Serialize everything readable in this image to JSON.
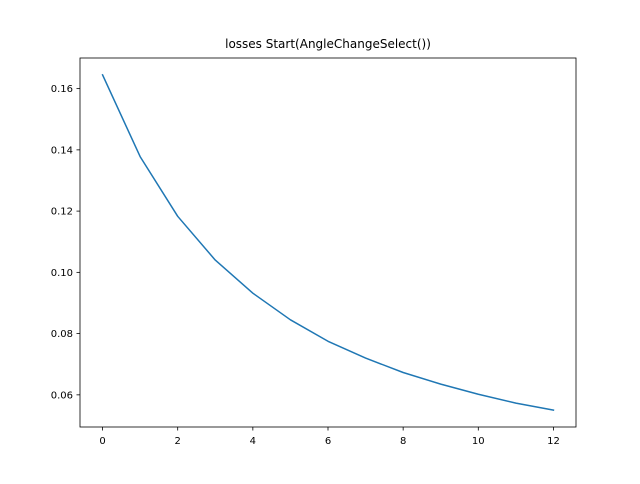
{
  "chart_data": {
    "type": "line",
    "title": "losses Start(AngleChangeSelect())",
    "xlabel": "",
    "ylabel": "",
    "x": [
      0,
      1,
      2,
      3,
      4,
      5,
      6,
      7,
      8,
      9,
      10,
      11,
      12
    ],
    "series": [
      {
        "values": [
          0.1645,
          0.1378,
          0.1183,
          0.104,
          0.0932,
          0.0845,
          0.0775,
          0.072,
          0.0673,
          0.0635,
          0.0602,
          0.0573,
          0.055
        ],
        "color": "#1f77b4"
      }
    ],
    "xlim": [
      -0.6,
      12.6
    ],
    "ylim": [
      0.0495,
      0.17
    ],
    "xticks": [
      0,
      2,
      4,
      6,
      8,
      10,
      12
    ],
    "xtick_labels": [
      "0",
      "2",
      "4",
      "6",
      "8",
      "10",
      "12"
    ],
    "yticks": [
      0.06,
      0.08,
      0.1,
      0.12,
      0.14,
      0.16
    ],
    "ytick_labels": [
      "0.06",
      "0.08",
      "0.10",
      "0.12",
      "0.14",
      "0.16"
    ],
    "grid": false,
    "legend": "none"
  }
}
